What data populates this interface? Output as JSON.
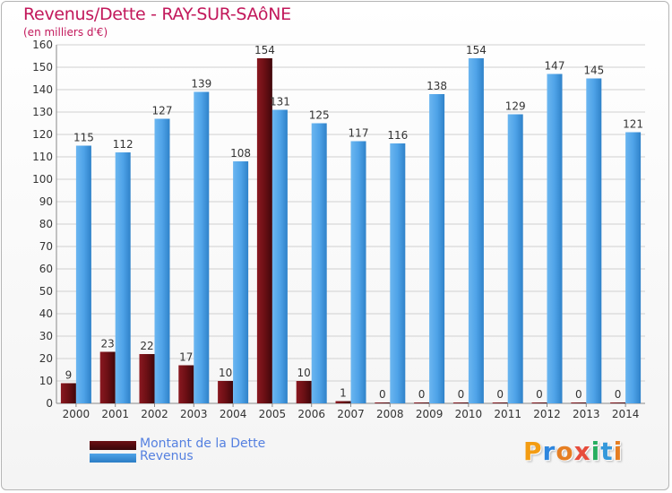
{
  "header": {
    "title": "Revenus/Dette - RAY-SUR-SAôNE",
    "subtitle": "(en milliers d'€)"
  },
  "legend": {
    "debt_label": "Montant de la Dette",
    "revenue_label": "Revenus"
  },
  "logo": {
    "text": "Proxiti",
    "letter_colors": [
      "#f39c12",
      "#2e86de",
      "#e67e22",
      "#e74c3c",
      "#27ae60",
      "#3498db",
      "#e67e22"
    ]
  },
  "colors": {
    "debt": "#6b0f14",
    "revenue": "#4fa3e8",
    "title": "#c2185b",
    "grid": "#d0d0d0",
    "axis_text": "#333333"
  },
  "chart_data": {
    "type": "bar",
    "categories": [
      "2000",
      "2001",
      "2002",
      "2003",
      "2004",
      "2005",
      "2006",
      "2007",
      "2008",
      "2009",
      "2010",
      "2011",
      "2012",
      "2013",
      "2014"
    ],
    "series": [
      {
        "name": "Montant de la Dette",
        "values": [
          9,
          23,
          22,
          17,
          10,
          154,
          10,
          1,
          0,
          0,
          0,
          0,
          0,
          0,
          0
        ]
      },
      {
        "name": "Revenus",
        "values": [
          115,
          112,
          127,
          139,
          108,
          131,
          125,
          117,
          116,
          138,
          154,
          129,
          147,
          145,
          121
        ]
      }
    ],
    "title": "Revenus/Dette - RAY-SUR-SAôNE",
    "ylabel": "(en milliers d'€)",
    "ylim": [
      0,
      160
    ],
    "yticks": [
      0,
      10,
      20,
      30,
      40,
      50,
      60,
      70,
      80,
      90,
      100,
      110,
      120,
      130,
      140,
      150,
      160
    ],
    "grid": true,
    "legend_position": "bottom-left"
  }
}
